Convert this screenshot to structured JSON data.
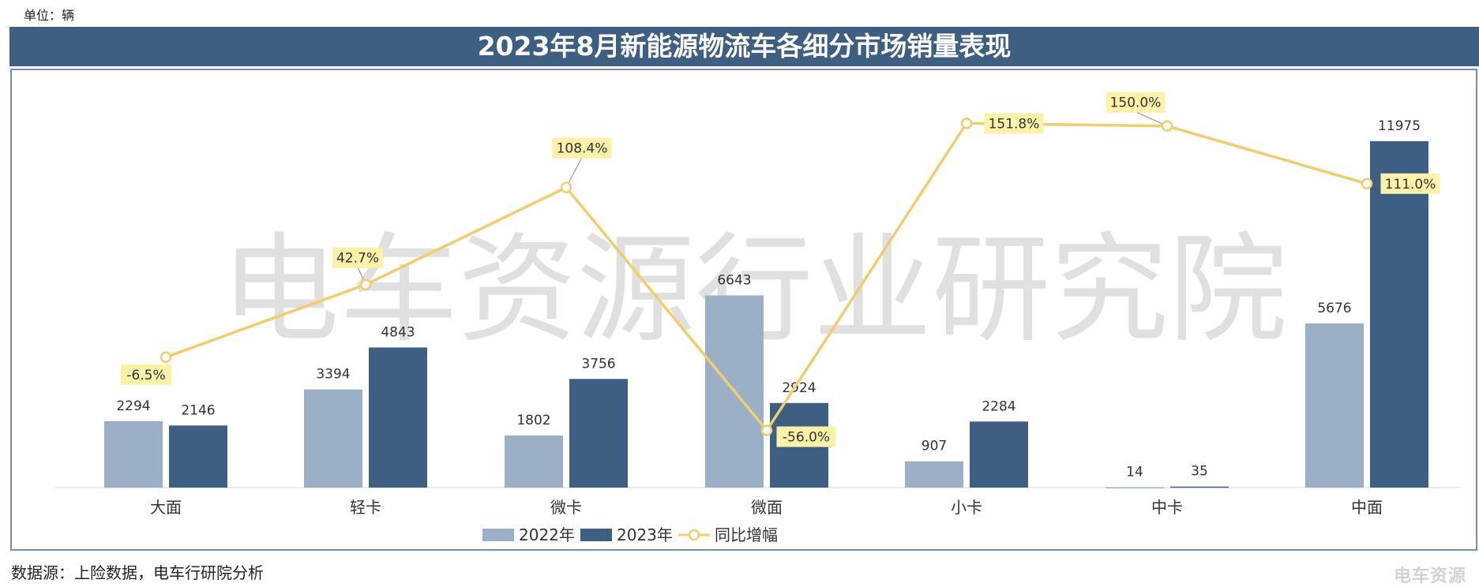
{
  "unit_label": "单位：辆",
  "title": "2023年8月新能源物流车各细分市场销量表现",
  "source": "数据源：上险数据，电车行研院分析",
  "watermark": "电车资源行业研究院",
  "corner_logo": "电车资源",
  "colors": {
    "title_bg": "#3e5f82",
    "bar_2022": "#9bb0c6",
    "bar_2023": "#3e5f82",
    "line": "#f2cd6e",
    "label_bg": "#fbf1a9"
  },
  "chart_data": {
    "type": "bar",
    "categories": [
      "大面",
      "轻卡",
      "微卡",
      "微面",
      "小卡",
      "中卡",
      "中面"
    ],
    "series": [
      {
        "name": "2022年",
        "type": "bar",
        "values": [
          2294,
          3394,
          1802,
          6643,
          907,
          14,
          5676
        ]
      },
      {
        "name": "2023年",
        "type": "bar",
        "values": [
          2146,
          4843,
          3756,
          2924,
          2284,
          35,
          11975
        ]
      }
    ],
    "growth": {
      "name": "同比增幅",
      "type": "line",
      "values": [
        -6.5,
        42.7,
        108.4,
        -56.0,
        151.8,
        150.0,
        111.0
      ],
      "labels": [
        "-6.5%",
        "42.7%",
        "108.4%",
        "-56.0%",
        "151.8%",
        "150.0%",
        "111.0%"
      ]
    },
    "legend": [
      "2022年",
      "2023年",
      "同比增幅"
    ],
    "legend_position": "bottom",
    "grid": false
  }
}
